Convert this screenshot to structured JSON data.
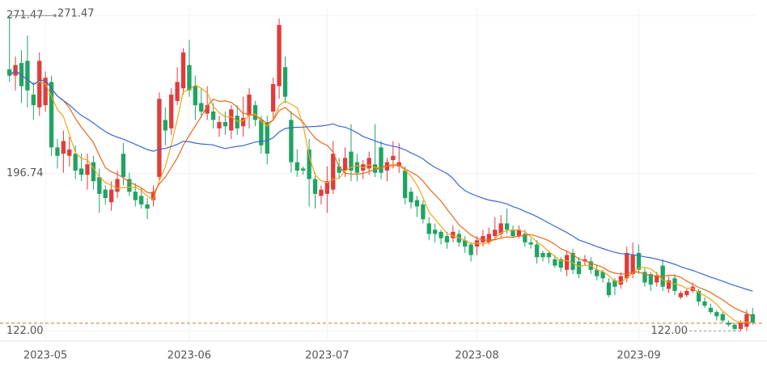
{
  "chart_data": {
    "type": "candlestick",
    "up_color": "#e03c3c",
    "down_color": "#1fa463",
    "open": [
      246,
      243,
      249,
      250,
      234,
      228,
      229,
      240,
      209,
      206,
      205,
      206,
      199,
      196,
      202,
      195,
      189,
      183,
      188,
      206,
      194,
      188,
      186,
      182,
      184,
      195,
      222,
      218,
      231,
      237,
      248,
      238,
      230,
      225,
      226,
      218,
      221,
      217,
      224,
      219,
      224,
      229,
      222,
      221,
      226,
      238,
      247,
      222,
      202,
      199,
      208,
      194,
      186,
      187,
      189,
      200,
      198,
      207,
      202,
      198,
      199,
      201,
      209,
      198,
      203,
      200,
      198,
      188,
      184,
      182,
      173,
      170,
      169,
      167,
      166,
      168,
      165,
      163,
      162,
      164,
      164,
      167,
      168,
      173,
      170,
      167,
      168,
      164,
      163,
      159,
      159,
      156,
      156,
      151,
      159,
      155,
      155,
      155,
      151,
      150,
      145,
      146,
      144,
      147,
      149,
      159,
      150,
      149,
      145,
      153,
      142,
      147,
      138,
      139,
      141,
      141,
      136,
      133,
      131,
      130,
      126,
      125,
      123,
      124,
      130
    ],
    "high": [
      271.47,
      252,
      255,
      262,
      240,
      254,
      245,
      243,
      213,
      217,
      214,
      210,
      206,
      206,
      205,
      199,
      191,
      193,
      198,
      211,
      197,
      192,
      190,
      185,
      191,
      235,
      228,
      237,
      247,
      256,
      260,
      243,
      237,
      238,
      230,
      224,
      226,
      229,
      229,
      233,
      237,
      231,
      224,
      224,
      242,
      270,
      252,
      226,
      208,
      200,
      213,
      197,
      191,
      200,
      212,
      204,
      209,
      220,
      206,
      203,
      207,
      220,
      212,
      204,
      212,
      211,
      200,
      190,
      186,
      184,
      176,
      173,
      170,
      169,
      172,
      170,
      167,
      164,
      167,
      170,
      171,
      176,
      177,
      180,
      172,
      172,
      170,
      166,
      165,
      160,
      160,
      158,
      157,
      160,
      161,
      157,
      158,
      157,
      153,
      151,
      147,
      147,
      150,
      162,
      164,
      163,
      152,
      150,
      150,
      156,
      148,
      149,
      141,
      142,
      145,
      142,
      138,
      135,
      132,
      131,
      127,
      126,
      127,
      132,
      133
    ],
    "low": [
      240,
      236,
      230,
      228,
      222,
      224,
      226,
      205,
      199,
      197,
      200,
      194,
      193,
      189,
      189,
      178,
      182,
      179,
      185,
      191,
      186,
      181,
      180,
      175,
      181,
      193,
      210,
      215,
      229,
      234,
      233,
      222,
      223,
      222,
      218,
      214,
      215,
      213,
      215,
      214,
      218,
      219,
      206,
      201,
      222,
      232,
      230,
      197,
      195,
      196,
      181,
      180,
      182,
      178,
      187,
      194,
      195,
      193,
      193,
      194,
      196,
      195,
      194,
      193,
      199,
      197,
      182,
      180,
      176,
      173,
      165,
      164,
      163,
      161,
      164,
      162,
      159,
      155,
      158,
      162,
      163,
      165,
      166,
      168,
      166,
      166,
      162,
      161,
      154,
      155,
      154,
      152,
      150,
      148,
      149,
      147,
      153,
      149,
      146,
      145,
      138,
      139,
      142,
      145,
      147,
      149,
      143,
      141,
      143,
      141,
      140,
      139,
      137,
      138,
      140,
      134,
      133,
      130,
      127,
      126,
      124,
      122,
      122,
      122,
      125
    ],
    "close": [
      243,
      248,
      238,
      236,
      229,
      250,
      242,
      209,
      205,
      212,
      208,
      198,
      196,
      201,
      193,
      187,
      185,
      189,
      194,
      195,
      188,
      184,
      182,
      180,
      188,
      232,
      217,
      234,
      240,
      254,
      236,
      229,
      226,
      229,
      222,
      221,
      219,
      227,
      218,
      223,
      234,
      222,
      210,
      206,
      239,
      267,
      233,
      202,
      198,
      198,
      194,
      187,
      189,
      193,
      206,
      197,
      204,
      198,
      197,
      201,
      204,
      197,
      197,
      202,
      205,
      202,
      185,
      183,
      181,
      175,
      168,
      168,
      166,
      164,
      169,
      164,
      162,
      158,
      165,
      167,
      168,
      170,
      173,
      170,
      167,
      170,
      164,
      163,
      157,
      157,
      157,
      153,
      152,
      158,
      151,
      149,
      156,
      151,
      148,
      147,
      139,
      143,
      148,
      159,
      158,
      151,
      145,
      144,
      148,
      143,
      146,
      141,
      140,
      141,
      143,
      136,
      134,
      131,
      129,
      127,
      125,
      123,
      126,
      130,
      126
    ],
    "moving_averages": [
      {
        "period": 5,
        "color": "#f2a516"
      },
      {
        "period": 10,
        "color": "#e8691b"
      },
      {
        "period": 30,
        "color": "#3a67d4"
      }
    ],
    "xticks": [
      {
        "value": 6,
        "label": "2023-05"
      },
      {
        "value": 30,
        "label": "2023-06"
      },
      {
        "value": 53,
        "label": "2023-07"
      },
      {
        "value": 78,
        "label": "2023-08"
      },
      {
        "value": 105,
        "label": "2023-09"
      }
    ],
    "xlim": [
      -0.5,
      124.5
    ],
    "ylim": [
      118,
      275
    ],
    "yticks": [
      {
        "value": 271.47,
        "label": "271.47"
      },
      {
        "value": 196.74,
        "label": "196.74"
      },
      {
        "value": 122,
        "label": "122.00"
      }
    ],
    "annotations": [
      {
        "label": "271.47",
        "value": 271.47,
        "index": 0
      },
      {
        "label": "122.00",
        "value": 122,
        "index": 122
      }
    ],
    "price_line": {
      "value": 125.7,
      "color": "#e8691b"
    },
    "grid": true
  }
}
